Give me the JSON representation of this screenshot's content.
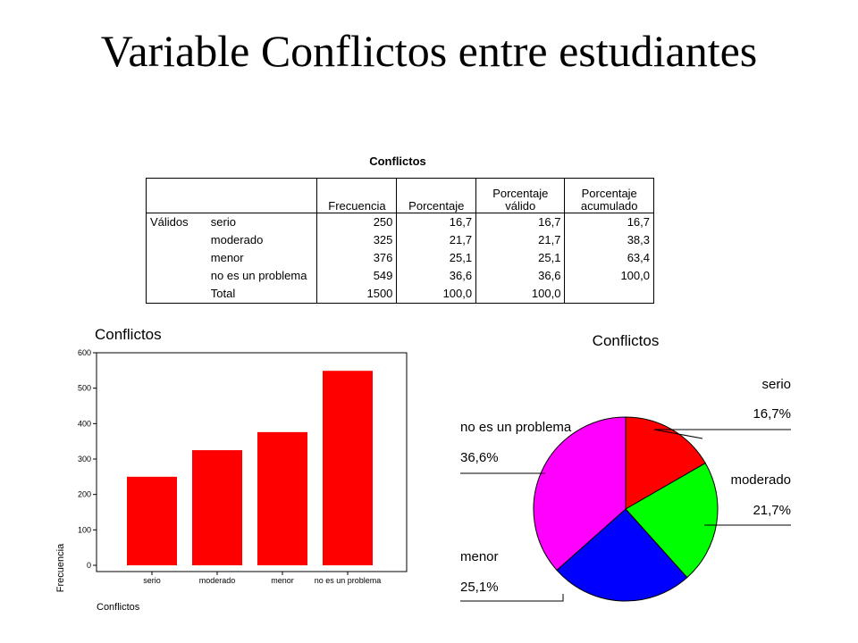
{
  "slide": {
    "title": "Variable Conflictos entre estudiantes"
  },
  "table": {
    "title": "Conflictos",
    "headers": [
      "Frecuencia",
      "Porcentaje",
      "Porcentaje válido",
      "Porcentaje acumulado"
    ],
    "group_label": "Válidos",
    "rows": [
      {
        "label": "serio",
        "freq": "250",
        "pct": "16,7",
        "valid": "16,7",
        "cum": "16,7"
      },
      {
        "label": "moderado",
        "freq": "325",
        "pct": "21,7",
        "valid": "21,7",
        "cum": "38,3"
      },
      {
        "label": "menor",
        "freq": "376",
        "pct": "25,1",
        "valid": "25,1",
        "cum": "63,4"
      },
      {
        "label": "no es un problema",
        "freq": "549",
        "pct": "36,6",
        "valid": "36,6",
        "cum": "100,0"
      },
      {
        "label": "Total",
        "freq": "1500",
        "pct": "100,0",
        "valid": "100,0",
        "cum": ""
      }
    ]
  },
  "chart_data": [
    {
      "type": "bar",
      "title": "Conflictos",
      "xlabel": "Conflictos",
      "ylabel": "Frecuencia",
      "categories": [
        "serio",
        "moderado",
        "menor",
        "no es un problema"
      ],
      "values": [
        250,
        325,
        376,
        549
      ],
      "ylim": [
        0,
        600
      ],
      "yticks": [
        0,
        100,
        200,
        300,
        400,
        500,
        600
      ],
      "color": "#ff0000",
      "grid": false
    },
    {
      "type": "pie",
      "title": "Conflictos",
      "slices": [
        {
          "label": "serio",
          "value": 16.7,
          "label_text": "16,7%",
          "color": "#ff0000"
        },
        {
          "label": "moderado",
          "value": 21.7,
          "label_text": "21,7%",
          "color": "#00ff00"
        },
        {
          "label": "menor",
          "value": 25.1,
          "label_text": "25,1%",
          "color": "#0000ff"
        },
        {
          "label": "no es un problema",
          "value": 36.6,
          "label_text": "36,6%",
          "color": "#ff00ff"
        }
      ]
    }
  ]
}
